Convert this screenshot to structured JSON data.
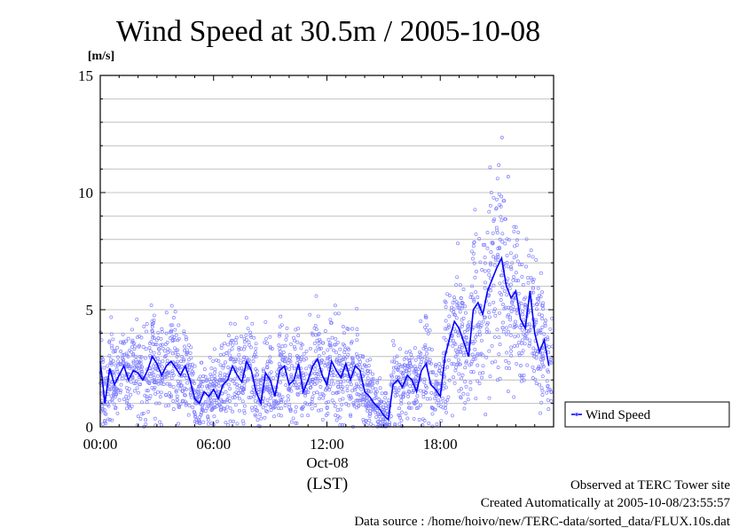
{
  "chart_data": {
    "type": "line",
    "title": "Wind Speed at 30.5m / 2005-10-08",
    "ylabel": "[m/s]",
    "xlabel": "(LST)",
    "date_label": "Oct-08",
    "ylim": [
      0,
      15
    ],
    "yticks": [
      "0",
      "5",
      "10",
      "15"
    ],
    "xlim": [
      "00:00",
      "24:00"
    ],
    "xticks": [
      "00:00",
      "06:00",
      "12:00",
      "18:00"
    ],
    "grid": true,
    "legend_position": "right, bottom",
    "series": [
      {
        "name": "Wind Speed",
        "color": "#0000ff",
        "points_color": "#8080ff",
        "x_hours": [
          0.0,
          0.25,
          0.5,
          0.75,
          1.0,
          1.25,
          1.5,
          1.75,
          2.0,
          2.25,
          2.5,
          2.75,
          3.0,
          3.25,
          3.5,
          3.75,
          4.0,
          4.25,
          4.5,
          4.75,
          5.0,
          5.25,
          5.5,
          5.75,
          6.0,
          6.25,
          6.5,
          6.75,
          7.0,
          7.25,
          7.5,
          7.75,
          8.0,
          8.25,
          8.5,
          8.75,
          9.0,
          9.25,
          9.5,
          9.75,
          10.0,
          10.25,
          10.5,
          10.75,
          11.0,
          11.25,
          11.5,
          11.75,
          12.0,
          12.25,
          12.5,
          12.75,
          13.0,
          13.25,
          13.5,
          13.75,
          14.0,
          14.25,
          14.5,
          14.75,
          15.0,
          15.25,
          15.5,
          15.75,
          16.0,
          16.25,
          16.5,
          16.75,
          17.0,
          17.25,
          17.5,
          17.75,
          18.0,
          18.25,
          18.5,
          18.75,
          19.0,
          19.25,
          19.5,
          19.75,
          20.0,
          20.25,
          20.5,
          20.75,
          21.0,
          21.25,
          21.5,
          21.75,
          22.0,
          22.25,
          22.5,
          22.75,
          23.0,
          23.25,
          23.5,
          23.75
        ],
        "values": [
          2.8,
          1.0,
          2.5,
          1.8,
          2.2,
          2.6,
          2.0,
          2.4,
          2.3,
          2.0,
          2.4,
          3.0,
          2.7,
          2.2,
          2.6,
          2.8,
          2.5,
          2.2,
          2.6,
          2.0,
          1.2,
          1.0,
          1.5,
          1.3,
          1.6,
          1.2,
          1.8,
          2.0,
          2.6,
          2.2,
          1.9,
          2.8,
          2.4,
          1.5,
          1.0,
          2.3,
          2.0,
          1.3,
          2.4,
          2.6,
          1.8,
          2.0,
          2.7,
          1.5,
          2.0,
          2.6,
          2.9,
          2.2,
          1.8,
          2.8,
          2.4,
          2.1,
          2.7,
          2.0,
          2.6,
          2.4,
          1.5,
          1.3,
          1.0,
          0.8,
          0.5,
          0.3,
          1.8,
          2.0,
          1.7,
          2.2,
          2.0,
          1.5,
          2.4,
          2.7,
          1.8,
          1.6,
          1.3,
          3.0,
          3.8,
          4.5,
          4.2,
          3.6,
          3.0,
          5.0,
          5.3,
          4.8,
          5.8,
          6.3,
          6.8,
          7.2,
          6.0,
          5.5,
          5.8,
          4.6,
          4.2,
          5.8,
          4.0,
          3.2,
          3.7,
          2.6
        ]
      }
    ],
    "legend": [
      "Wind Speed"
    ],
    "footer": [
      "Observed at TERC Tower site",
      "Created Automatically at 2005-10-08/23:55:57",
      "Data source : /home/hoivo/new/TERC-data/sorted_data/FLUX.10s.dat"
    ]
  }
}
